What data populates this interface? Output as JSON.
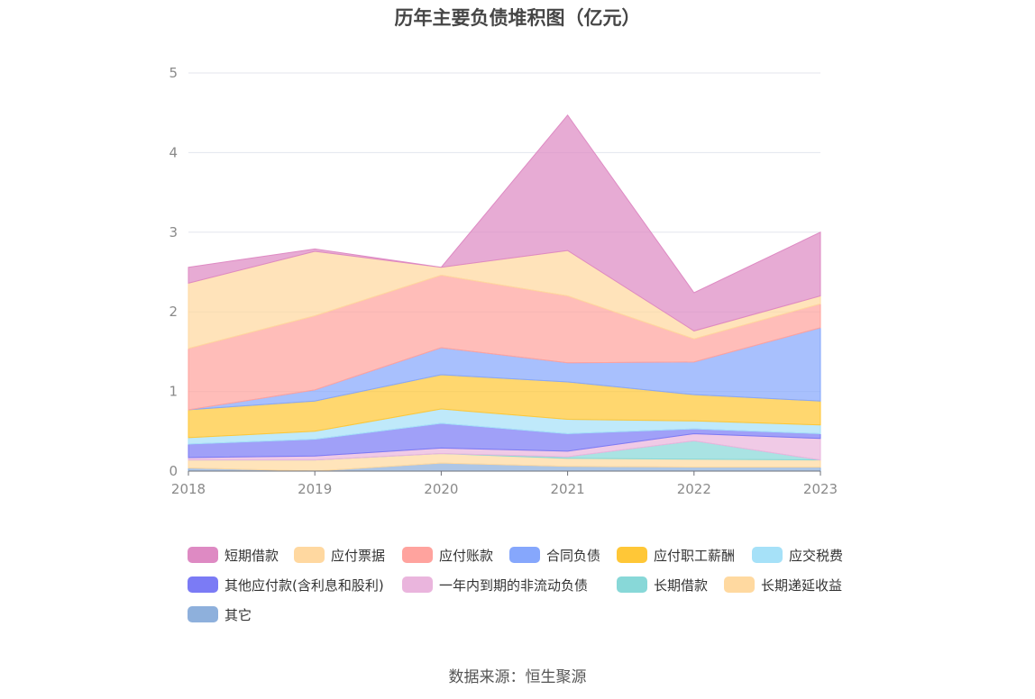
{
  "page": {
    "source_label": "数据来源：恒生聚源"
  },
  "chart_data": {
    "type": "area",
    "stacked": true,
    "title": "历年主要负债堆积图（亿元）",
    "xlabel": "",
    "ylabel": "",
    "x": [
      "2018",
      "2019",
      "2020",
      "2021",
      "2022",
      "2023"
    ],
    "ylim": [
      0,
      5
    ],
    "yticks": [
      "0",
      "1",
      "2",
      "3",
      "4",
      "5"
    ],
    "grid": true,
    "legend_position": "bottom",
    "series": [
      {
        "name": "其它",
        "color": "#8eb0dc",
        "values": [
          0.04,
          0.0,
          0.1,
          0.06,
          0.05,
          0.05
        ]
      },
      {
        "name": "长期递延收益",
        "color": "#ffd9a0",
        "values": [
          0.1,
          0.14,
          0.12,
          0.1,
          0.1,
          0.09
        ]
      },
      {
        "name": "长期借款",
        "color": "#88d8d8",
        "values": [
          0.0,
          0.0,
          0.0,
          0.02,
          0.23,
          0.0
        ]
      },
      {
        "name": "一年内到期的非流动负债",
        "color": "#eab5dd",
        "values": [
          0.03,
          0.05,
          0.07,
          0.07,
          0.09,
          0.27
        ]
      },
      {
        "name": "其他应付款(含利息和股利)",
        "color": "#7b7bf5",
        "values": [
          0.17,
          0.21,
          0.31,
          0.22,
          0.06,
          0.06
        ]
      },
      {
        "name": "应交税费",
        "color": "#a6e1f8",
        "values": [
          0.08,
          0.1,
          0.18,
          0.18,
          0.1,
          0.11
        ]
      },
      {
        "name": "应付职工薪酬",
        "color": "#ffc737",
        "values": [
          0.35,
          0.38,
          0.43,
          0.47,
          0.33,
          0.3
        ]
      },
      {
        "name": "合同负债",
        "color": "#86a7fc",
        "values": [
          0.0,
          0.14,
          0.34,
          0.24,
          0.41,
          0.92
        ]
      },
      {
        "name": "应付账款",
        "color": "#ffa39e",
        "values": [
          0.77,
          0.93,
          0.91,
          0.84,
          0.29,
          0.3
        ]
      },
      {
        "name": "应付票据",
        "color": "#ffd8a0",
        "values": [
          0.82,
          0.81,
          0.1,
          0.57,
          0.1,
          0.1
        ]
      },
      {
        "name": "短期借款",
        "color": "#de8ac3",
        "values": [
          0.2,
          0.03,
          0.0,
          1.7,
          0.48,
          0.8
        ]
      }
    ],
    "legend_order": [
      "短期借款",
      "应付票据",
      "应付账款",
      "合同负债",
      "应付职工薪酬",
      "应交税费",
      "其他应付款(含利息和股利)",
      "一年内到期的非流动负债",
      "长期借款",
      "长期递延收益",
      "其它"
    ]
  }
}
